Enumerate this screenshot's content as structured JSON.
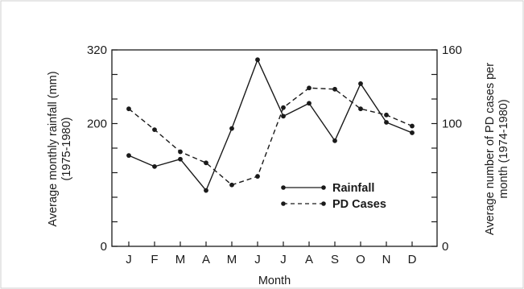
{
  "chart_data": {
    "type": "line",
    "categories": [
      "J",
      "F",
      "M",
      "A",
      "M",
      "J",
      "J",
      "A",
      "S",
      "O",
      "N",
      "D"
    ],
    "series": [
      {
        "name": "Rainfall",
        "axis": "left",
        "style": "solid",
        "values": [
          148,
          130,
          142,
          91,
          192,
          304,
          212,
          233,
          172,
          265,
          202,
          185
        ]
      },
      {
        "name": "PD Cases",
        "axis": "right",
        "style": "dashed",
        "values": [
          112,
          95,
          77,
          68,
          50,
          57,
          113,
          129,
          128,
          112,
          107,
          98
        ]
      }
    ],
    "xlabel": "Month",
    "ylabel_left_line1": "Average monthly rainfall (mm)",
    "ylabel_left_line2": "(1975-1980)",
    "ylabel_right_line1": "Average number of PD cases per",
    "ylabel_right_line2": "month (1974-1980)",
    "ylim_left": [
      0,
      320
    ],
    "ylim_right": [
      0,
      160
    ],
    "yticks_left": [
      "320",
      "200",
      "0"
    ],
    "yticks_left_values": [
      320,
      200,
      0
    ],
    "yticks_right": [
      "160",
      "100",
      "0"
    ],
    "yticks_right_values": [
      160,
      100,
      0
    ],
    "legend_position": "center-right",
    "grid": false,
    "line_color": "#1a1a1a"
  }
}
